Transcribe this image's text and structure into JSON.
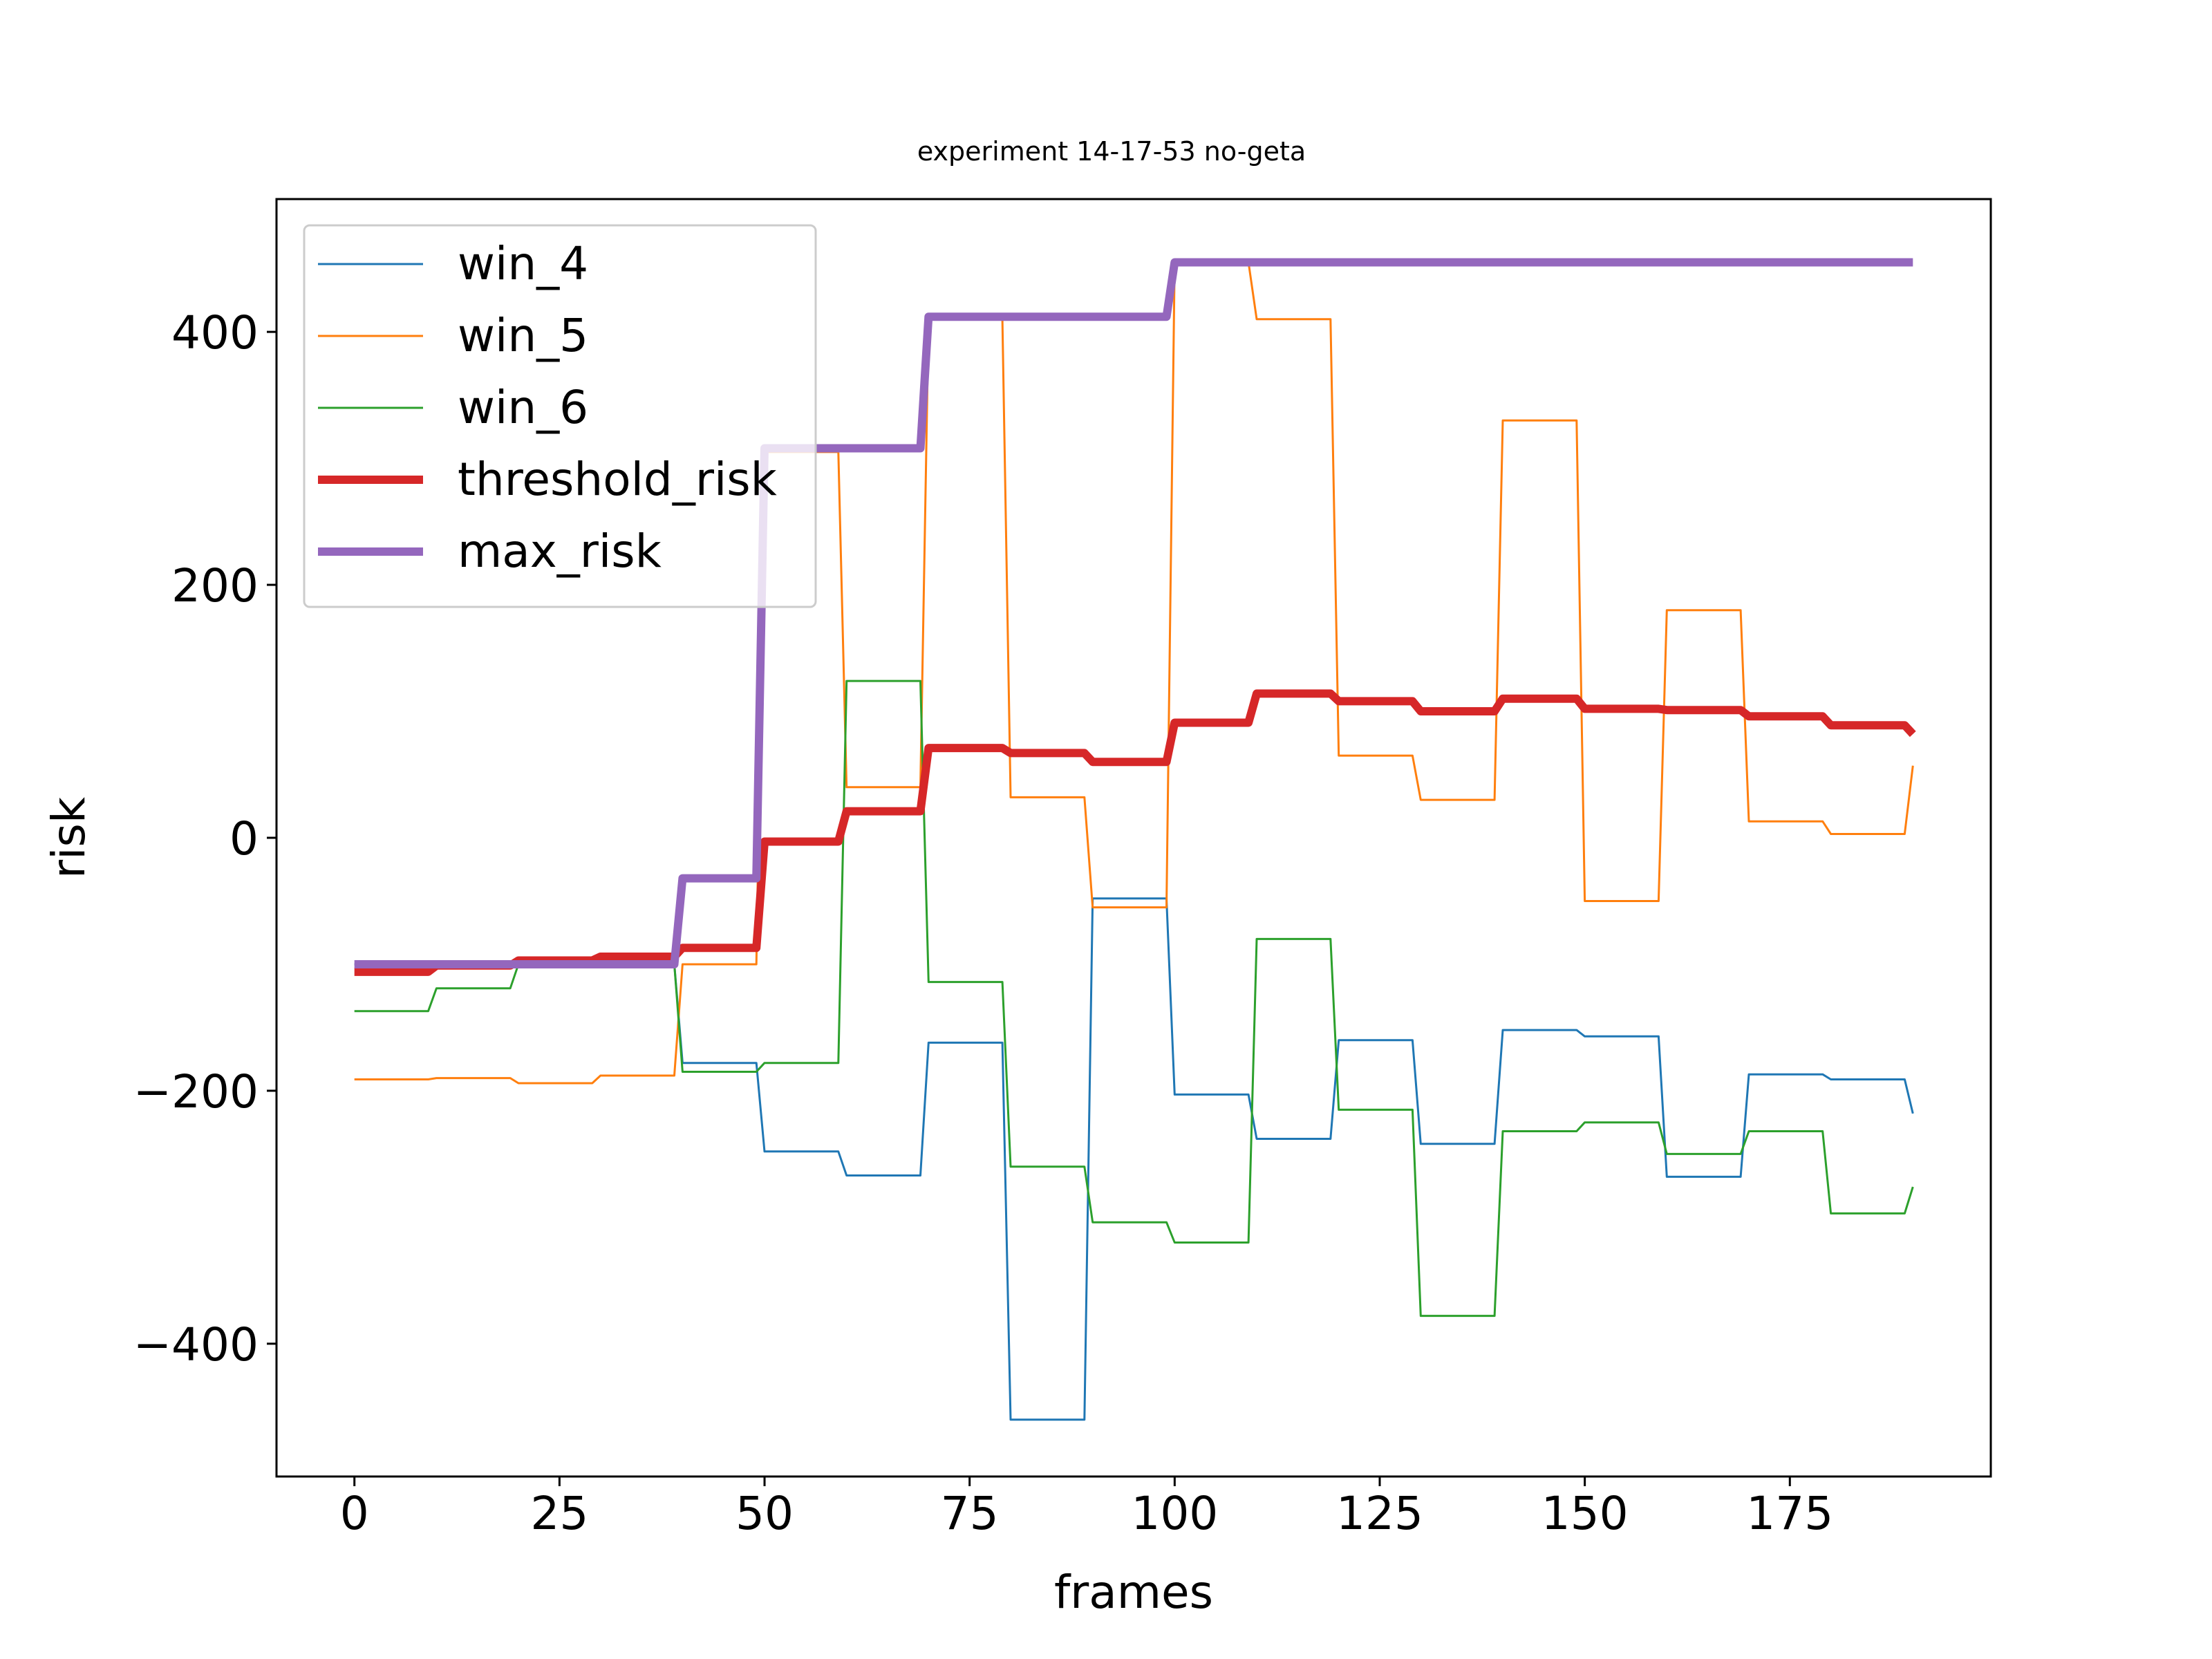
{
  "chart_data": {
    "type": "line",
    "title": "experiment 14-17-53 no-geta",
    "xlabel": "frames",
    "ylabel": "risk",
    "xlim": [
      -9.5,
      199.5
    ],
    "ylim": [
      -505,
      505
    ],
    "x_ticks": [
      0,
      25,
      50,
      75,
      100,
      125,
      150,
      175
    ],
    "y_ticks": [
      -400,
      -200,
      0,
      200,
      400
    ],
    "x_tick_labels": [
      "0",
      "25",
      "50",
      "75",
      "100",
      "125",
      "150",
      "175"
    ],
    "y_tick_labels": [
      "−400",
      "−200",
      "0",
      "200",
      "400"
    ],
    "grid": false,
    "legend_position": "upper-left",
    "x": [
      0,
      9,
      10,
      19,
      20,
      29,
      30,
      39,
      40,
      49,
      50,
      59,
      60,
      69,
      70,
      79,
      80,
      89,
      90,
      99,
      100,
      109,
      110,
      119,
      120,
      129,
      130,
      139,
      140,
      149,
      150,
      159,
      160,
      169,
      170,
      179,
      180,
      189,
      190
    ],
    "series": [
      {
        "name": "win_4",
        "color": "#1f77b4",
        "width": 3,
        "values": [
          -100,
          -100,
          -100,
          -100,
          -100,
          -100,
          -100,
          -100,
          -178,
          -178,
          -248,
          -248,
          -267,
          -267,
          -162,
          -162,
          -460,
          -460,
          -48,
          -48,
          -203,
          -203,
          -238,
          -238,
          -160,
          -160,
          -242,
          -242,
          -152,
          -152,
          -157,
          -157,
          -268,
          -268,
          -187,
          -187,
          -191,
          -191,
          -218
        ]
      },
      {
        "name": "win_5",
        "color": "#ff7f0e",
        "width": 3,
        "values": [
          -191,
          -191,
          -190,
          -190,
          -194,
          -194,
          -188,
          -188,
          -100,
          -100,
          305,
          305,
          40,
          40,
          410,
          410,
          32,
          32,
          -55,
          -55,
          455,
          455,
          410,
          410,
          65,
          65,
          30,
          30,
          330,
          330,
          -50,
          -50,
          180,
          180,
          13,
          13,
          3,
          3,
          57
        ]
      },
      {
        "name": "win_6",
        "color": "#2ca02c",
        "width": 3,
        "values": [
          -137,
          -137,
          -119,
          -119,
          -100,
          -100,
          -100,
          -100,
          -185,
          -185,
          -178,
          -178,
          124,
          124,
          -114,
          -114,
          -260,
          -260,
          -304,
          -304,
          -320,
          -320,
          -80,
          -80,
          -215,
          -215,
          -378,
          -378,
          -232,
          -232,
          -225,
          -225,
          -250,
          -250,
          -232,
          -232,
          -297,
          -297,
          -276
        ]
      },
      {
        "name": "threshold_risk",
        "color": "#d62728",
        "width": 12,
        "values": [
          -106,
          -106,
          -101,
          -101,
          -97,
          -97,
          -94,
          -94,
          -87,
          -87,
          -3,
          -3,
          21,
          21,
          71,
          71,
          67,
          67,
          60,
          60,
          91,
          91,
          114,
          114,
          108,
          108,
          100,
          100,
          110,
          110,
          102,
          102,
          101,
          101,
          96,
          96,
          89,
          89,
          82
        ]
      },
      {
        "name": "max_risk",
        "color": "#9467bd",
        "width": 12,
        "values": [
          -100,
          -100,
          -100,
          -100,
          -100,
          -100,
          -100,
          -100,
          -32,
          -32,
          308,
          308,
          308,
          308,
          412,
          412,
          412,
          412,
          412,
          412,
          455,
          455,
          455,
          455,
          455,
          455,
          455,
          455,
          455,
          455,
          455,
          455,
          455,
          455,
          455,
          455,
          455,
          455,
          455
        ]
      }
    ]
  }
}
